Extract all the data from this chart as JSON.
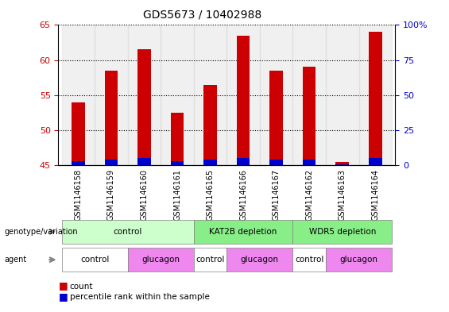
{
  "title": "GDS5673 / 10402988",
  "samples": [
    "GSM1146158",
    "GSM1146159",
    "GSM1146160",
    "GSM1146161",
    "GSM1146165",
    "GSM1146166",
    "GSM1146167",
    "GSM1146162",
    "GSM1146163",
    "GSM1146164"
  ],
  "counts": [
    54.0,
    58.5,
    61.5,
    52.5,
    56.5,
    63.5,
    58.5,
    59.0,
    45.5,
    64.0
  ],
  "percentiles": [
    3,
    4,
    5,
    3,
    4,
    5,
    4,
    4,
    1,
    5
  ],
  "ylim_left": [
    45,
    65
  ],
  "ylim_right": [
    0,
    100
  ],
  "yticks_left": [
    45,
    50,
    55,
    60,
    65
  ],
  "yticks_right": [
    0,
    25,
    50,
    75,
    100
  ],
  "ytick_labels_right": [
    "0",
    "25",
    "50",
    "75",
    "100%"
  ],
  "bar_color": "#cc0000",
  "percentile_color": "#0000cc",
  "bar_width": 0.4,
  "genotype_groups": [
    {
      "label": "control",
      "start": 0,
      "end": 3,
      "color": "#ccffcc"
    },
    {
      "label": "KAT2B depletion",
      "start": 4,
      "end": 6,
      "color": "#88ee88"
    },
    {
      "label": "WDR5 depletion",
      "start": 7,
      "end": 9,
      "color": "#88ee88"
    }
  ],
  "agent_groups": [
    {
      "label": "control",
      "start": 0,
      "end": 1,
      "color": "#ffffff"
    },
    {
      "label": "glucagon",
      "start": 2,
      "end": 3,
      "color": "#ee88ee"
    },
    {
      "label": "control",
      "start": 4,
      "end": 4,
      "color": "#ffffff"
    },
    {
      "label": "glucagon",
      "start": 5,
      "end": 6,
      "color": "#ee88ee"
    },
    {
      "label": "control",
      "start": 7,
      "end": 7,
      "color": "#ffffff"
    },
    {
      "label": "glucagon",
      "start": 8,
      "end": 9,
      "color": "#ee88ee"
    }
  ],
  "legend_count_color": "#cc0000",
  "legend_percentile_color": "#0000cc",
  "axis_color_left": "#cc0000",
  "axis_color_right": "#0000cc",
  "background_color": "#ffffff",
  "plot_bg_color": "#ffffff"
}
